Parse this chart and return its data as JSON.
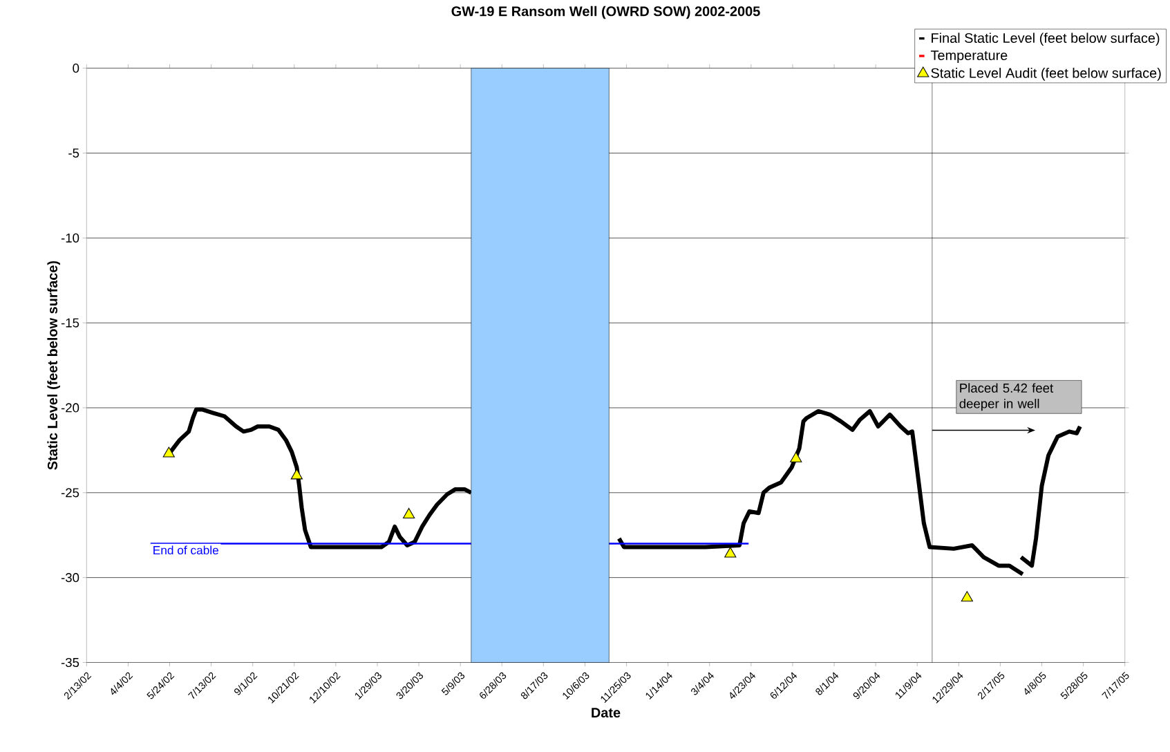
{
  "chart_data": {
    "type": "line",
    "title": "GW-19 E Ransom Well (OWRD SOW) 2002-2005",
    "xlabel": "Date",
    "ylabel": "Static Level (feet below surface)",
    "xlim": [
      "2002-02-13",
      "2005-07-17"
    ],
    "xticks": [
      {
        "value": "2002-02-13",
        "label": "2/13/02"
      },
      {
        "value": "2002-04-04",
        "label": "4/4/02"
      },
      {
        "value": "2002-05-24",
        "label": "5/24/02"
      },
      {
        "value": "2002-07-13",
        "label": "7/13/02"
      },
      {
        "value": "2002-09-01",
        "label": "9/1/02"
      },
      {
        "value": "2002-10-21",
        "label": "10/21/02"
      },
      {
        "value": "2002-12-10",
        "label": "12/10/02"
      },
      {
        "value": "2003-01-29",
        "label": "1/29/03"
      },
      {
        "value": "2003-03-20",
        "label": "3/20/03"
      },
      {
        "value": "2003-05-09",
        "label": "5/9/03"
      },
      {
        "value": "2003-06-28",
        "label": "6/28/03"
      },
      {
        "value": "2003-08-17",
        "label": "8/17/03"
      },
      {
        "value": "2003-10-06",
        "label": "10/6/03"
      },
      {
        "value": "2003-11-25",
        "label": "11/25/03"
      },
      {
        "value": "2004-01-14",
        "label": "1/14/04"
      },
      {
        "value": "2004-03-04",
        "label": "3/4/04"
      },
      {
        "value": "2004-04-23",
        "label": "4/23/04"
      },
      {
        "value": "2004-06-12",
        "label": "6/12/04"
      },
      {
        "value": "2004-08-01",
        "label": "8/1/04"
      },
      {
        "value": "2004-09-20",
        "label": "9/20/04"
      },
      {
        "value": "2004-11-09",
        "label": "11/9/04"
      },
      {
        "value": "2004-12-29",
        "label": "12/29/04"
      },
      {
        "value": "2005-02-17",
        "label": "2/17/05"
      },
      {
        "value": "2005-04-08",
        "label": "4/8/05"
      },
      {
        "value": "2005-05-28",
        "label": "5/28/05"
      },
      {
        "value": "2005-07-17",
        "label": "7/17/05"
      }
    ],
    "ylim": [
      -35,
      0
    ],
    "yticks": [
      -35,
      -30,
      -25,
      -20,
      -15,
      -10,
      -5,
      0
    ],
    "grid": "y",
    "legend": "top right",
    "series": [
      {
        "name": "Final Static Level (feet below surface)",
        "color": "#000000",
        "x": [
          "2002-05-25",
          "2002-06-05",
          "2002-06-16",
          "2002-06-21",
          "2002-06-25",
          "2002-07-02",
          "2002-07-15",
          "2002-07-29",
          "2002-08-12",
          "2002-08-21",
          "2002-08-30",
          "2002-09-07",
          "2002-09-21",
          "2002-10-02",
          "2002-10-11",
          "2002-10-18",
          "2002-10-24",
          "2002-10-27",
          "2002-10-30",
          "2002-11-03",
          "2002-11-10",
          "2002-12-02",
          "2002-12-29",
          "2003-02-03",
          "2003-02-12",
          "2003-02-19",
          "2003-02-25",
          "2003-03-06",
          "2003-03-15",
          "2003-03-24",
          "2003-04-02",
          "2003-04-11",
          "2003-04-23",
          "2003-05-03",
          "2003-05-14",
          "2003-05-22",
          "2003-08-01",
          "2003-11-16",
          "2003-11-22",
          "2004-01-05",
          "2004-02-28",
          "2004-04-09",
          "2004-04-14",
          "2004-04-21",
          "2004-05-02",
          "2004-05-08",
          "2004-05-15",
          "2004-05-29",
          "2004-06-11",
          "2004-06-20",
          "2004-06-25",
          "2004-06-29",
          "2004-07-13",
          "2004-07-27",
          "2004-08-09",
          "2004-08-23",
          "2004-09-01",
          "2004-09-13",
          "2004-09-23",
          "2004-10-07",
          "2004-10-20",
          "2004-10-29",
          "2004-11-03",
          "2004-11-08",
          "2004-11-17",
          "2004-11-24",
          "2004-12-23",
          "2005-01-14",
          "2005-01-28",
          "2005-02-15",
          "2005-02-28",
          "2005-03-16",
          "2005-03-15",
          "2005-03-14",
          "2005-03-27",
          "2005-04-01",
          "2005-04-08",
          "2005-04-16",
          "2005-04-27",
          "2005-05-11",
          "2005-05-20",
          "2005-05-24"
        ],
        "values": [
          -22.6,
          -21.9,
          -21.4,
          -20.6,
          -20.1,
          -20.1,
          -20.3,
          -20.5,
          -21.1,
          -21.4,
          -21.3,
          -21.1,
          -21.1,
          -21.3,
          -21.9,
          -22.6,
          -23.5,
          -24.6,
          -25.9,
          -27.2,
          -28.2,
          -28.2,
          -28.2,
          -28.2,
          -27.9,
          -27.0,
          -27.6,
          -28.1,
          -27.9,
          -27.0,
          -26.3,
          -25.7,
          -25.1,
          -24.8,
          -24.8,
          -25.0,
          null,
          -27.7,
          -28.2,
          -28.2,
          -28.2,
          -28.1,
          -26.8,
          -26.1,
          -26.2,
          -25.0,
          -24.7,
          -24.4,
          -23.5,
          -22.4,
          -20.8,
          -20.6,
          -20.2,
          -20.4,
          -20.8,
          -21.3,
          -20.7,
          -20.2,
          -21.1,
          -20.4,
          -21.1,
          -21.5,
          -21.4,
          -23.3,
          -26.8,
          -28.2,
          -28.3,
          -28.1,
          -28.8,
          -29.3,
          -29.3,
          -29.8,
          null,
          -28.8,
          -29.3,
          -27.7,
          -24.6,
          -22.8,
          -21.7,
          -21.4,
          -21.5,
          -21.1
        ]
      },
      {
        "name": "Temperature",
        "color": "#ff0000"
      },
      {
        "name": "Static Level Audit (feet below surface)",
        "type": "scatter",
        "marker": "triangle",
        "color": "#ffff00",
        "x": [
          "2002-05-23",
          "2002-10-24",
          "2003-03-08",
          "2004-03-29",
          "2004-06-16",
          "2005-01-08"
        ],
        "values": [
          -22.7,
          -24.0,
          -26.3,
          -28.6,
          -23.0,
          -31.2
        ]
      },
      {
        "name": "End of cable",
        "color": "#0000ff",
        "x": [
          "2002-05-01",
          "2004-04-20"
        ],
        "values": [
          -28.0,
          -28.0
        ]
      }
    ],
    "bands": [
      {
        "axis": "x",
        "from": "2003-05-22",
        "to": "2003-11-04",
        "color": "#99ccff"
      }
    ],
    "ref_lines": [
      {
        "axis": "x",
        "value": "2004-11-27",
        "color": "#000000"
      }
    ],
    "annotations": [
      "Placed 5.42 feet deeper in well"
    ]
  }
}
